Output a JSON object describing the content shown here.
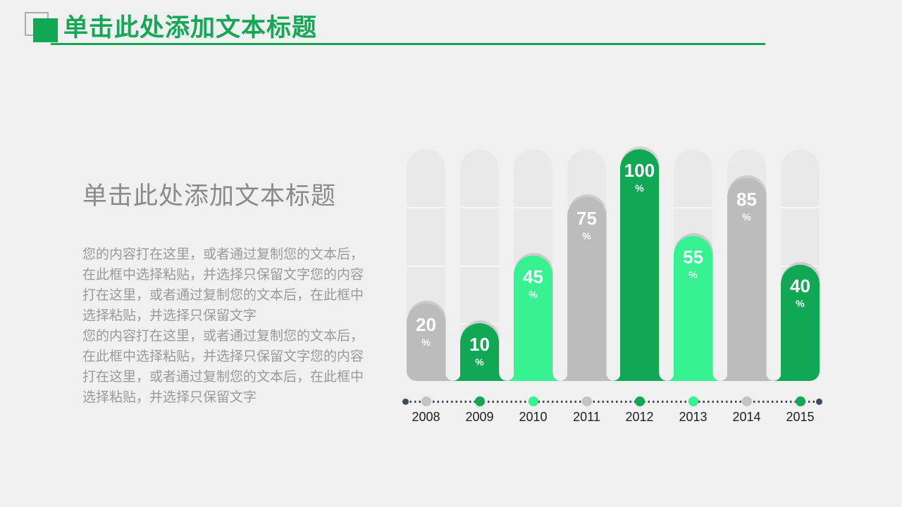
{
  "header": {
    "title": "单击此处添加文本标题"
  },
  "left_panel": {
    "heading": "单击此处添加文本标题",
    "paragraphs": [
      "您的内容打在这里，或者通过复制您的文本后，在此框中选择粘贴，并选择只保留文字您的内容打在这里，或者通过复制您的文本后，在此框中选择粘贴，并选择只保留文字",
      "您的内容打在这里，或者通过复制您的文本后，在此框中选择粘贴，并选择只保留文字您的内容打在这里，或者通过复制您的文本后，在此框中选择粘贴，并选择只保留文字"
    ]
  },
  "chart_data": {
    "type": "bar",
    "title": "",
    "categories": [
      "2008",
      "2009",
      "2010",
      "2011",
      "2012",
      "2013",
      "2014",
      "2015"
    ],
    "values": [
      20,
      10,
      45,
      75,
      100,
      55,
      85,
      40
    ],
    "value_suffix": "%",
    "ylim": [
      0,
      100
    ],
    "grid": true,
    "bar_color_roles": [
      "gray",
      "green",
      "mint",
      "gray",
      "green",
      "mint",
      "gray",
      "green"
    ],
    "axis": {
      "style": "dotted-timeline",
      "dot_color_roles": [
        "gray_dot",
        "green",
        "mint",
        "gray_dot",
        "green",
        "mint",
        "gray_dot",
        "green"
      ]
    }
  },
  "colors": {
    "green": "#10A854",
    "mint": "#36F291",
    "gray": "#BCBCBC",
    "gray_dot": "#C3C3C3",
    "track": "#E9E9E9",
    "navy": "#3D4A5C",
    "accent_title": "#14A756",
    "slide_bg": "#F0F0F0"
  }
}
